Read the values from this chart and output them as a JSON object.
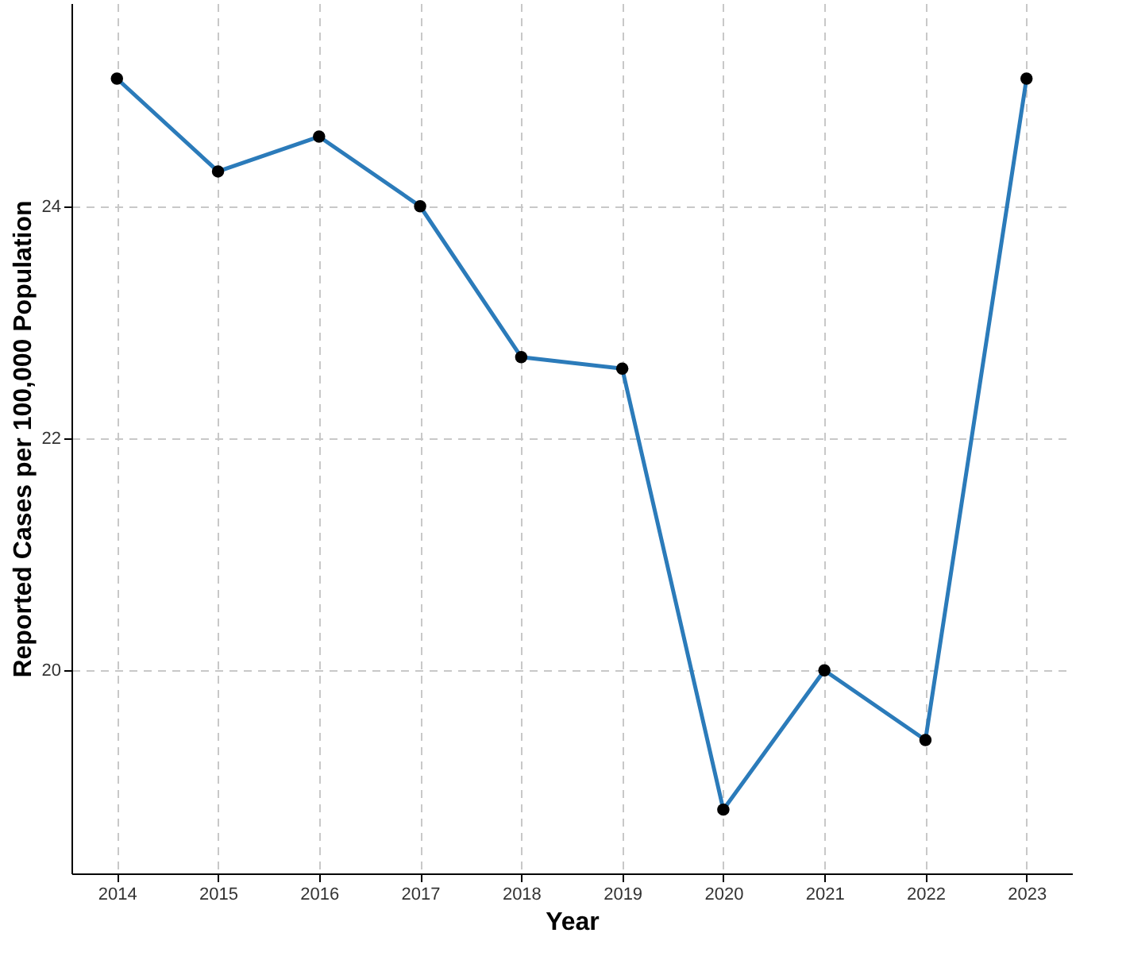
{
  "chart_data": {
    "type": "line",
    "xlabel": "Year",
    "ylabel": "Reported Cases per 100,000 Population",
    "x": [
      2014,
      2015,
      2016,
      2017,
      2018,
      2019,
      2020,
      2021,
      2022,
      2023
    ],
    "series": [
      {
        "color": "#2b7bba",
        "values": [
          25.1,
          24.3,
          24.6,
          24.0,
          22.7,
          22.6,
          18.8,
          20.0,
          19.4,
          25.1
        ]
      }
    ],
    "xlim": [
      2013.55,
      2023.45
    ],
    "xticks": [
      2014,
      2015,
      2016,
      2017,
      2018,
      2019,
      2020,
      2021,
      2022,
      2023
    ],
    "ylim": [
      18.25,
      25.75
    ],
    "yticks": [
      20,
      22,
      24
    ],
    "grid": true,
    "marker": "circle",
    "line_style": "solid"
  }
}
